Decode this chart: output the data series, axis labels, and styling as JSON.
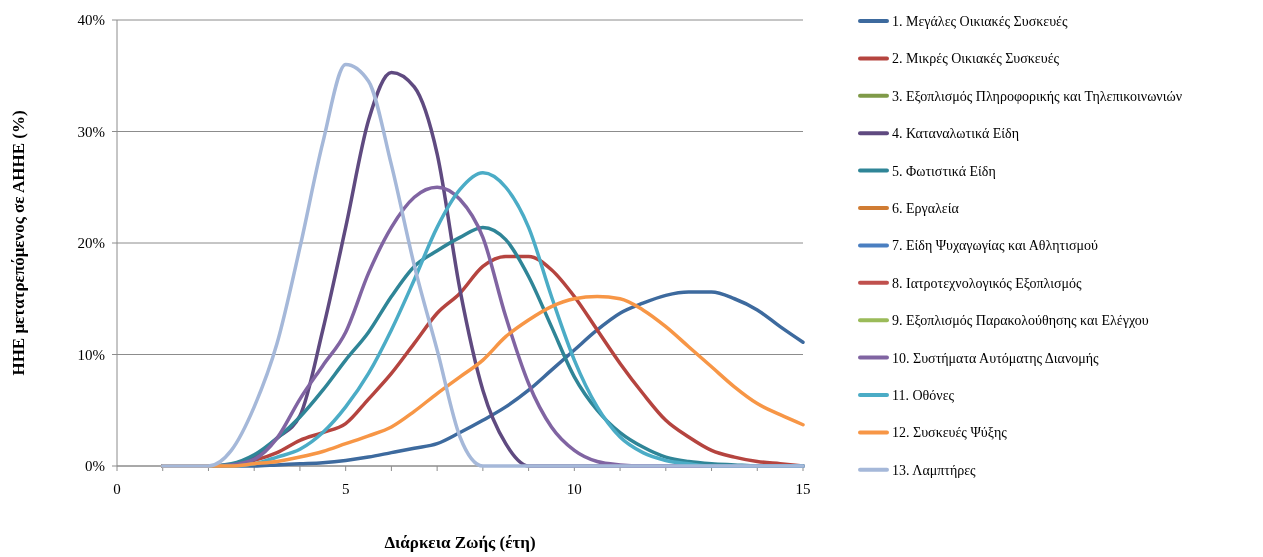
{
  "chart_data": {
    "type": "line",
    "xlabel": "Διάρκεια Ζωής (έτη)",
    "ylabel": "ΗΗΕ μετατρεπόμενος σε ΑΗΗΕ (%)",
    "x": [
      1,
      1.5,
      2,
      2.5,
      3,
      3.5,
      4,
      4.5,
      5,
      5.5,
      6,
      6.5,
      7,
      7.5,
      8,
      8.5,
      9,
      9.5,
      10,
      10.5,
      11,
      11.5,
      12,
      12.5,
      13,
      13.5,
      14,
      14.5,
      15
    ],
    "xlim": [
      0,
      15
    ],
    "xticks": [
      0,
      {
        "value": 1,
        "label": null
      },
      {
        "value": 2,
        "label": null
      },
      {
        "value": 3,
        "label": null
      },
      {
        "value": 4,
        "label": null
      },
      5,
      {
        "value": 6,
        "label": null
      },
      {
        "value": 7,
        "label": null
      },
      {
        "value": 8,
        "label": null
      },
      {
        "value": 9,
        "label": null
      },
      10,
      {
        "value": 11,
        "label": null
      },
      {
        "value": 12,
        "label": null
      },
      {
        "value": 13,
        "label": null
      },
      {
        "value": 14,
        "label": null
      },
      15
    ],
    "ylim": [
      0,
      40
    ],
    "yticks": [
      {
        "value": 0,
        "label": "0%"
      },
      {
        "value": 10,
        "label": "10%"
      },
      {
        "value": 20,
        "label": "20%"
      },
      {
        "value": 30,
        "label": "30%"
      },
      {
        "value": 40,
        "label": "40%"
      }
    ],
    "grid": "y",
    "legend": "right",
    "marker": "none",
    "line_style": "solid",
    "series": [
      {
        "name": "1. Μεγάλες Οικιακές Συσκευές",
        "color": "#3d6a9e",
        "values": [
          0,
          0,
          0,
          0,
          0,
          0.1,
          0.2,
          0.3,
          0.5,
          0.8,
          1.2,
          1.6,
          2,
          3,
          4.1,
          5.3,
          6.8,
          8.6,
          10.4,
          12.2,
          13.7,
          14.6,
          15.3,
          15.6,
          15.6,
          15,
          14,
          12.5,
          11.1
        ]
      },
      {
        "name": "2. Μικρές Οικιακές Συσκευές",
        "color": "#b5443f",
        "values": [
          0,
          0,
          0,
          0.1,
          0.5,
          1.2,
          2.3,
          3,
          3.8,
          6,
          8.3,
          11,
          13.7,
          15.5,
          17.9,
          18.8,
          18.8,
          17.6,
          15.2,
          12.2,
          9.2,
          6.5,
          4.1,
          2.6,
          1.4,
          0.8,
          0.4,
          0.2,
          0
        ]
      },
      {
        "name": "3. Εξοπλισμός Πληροφορικής και Τηλεπικοινωνιών",
        "color": "#7f9a48",
        "values": [
          null,
          null,
          null,
          null,
          null,
          null,
          null,
          null,
          null,
          null,
          null,
          null,
          null,
          null,
          null,
          null,
          null,
          null,
          null,
          null,
          null,
          null,
          null,
          null,
          null,
          null,
          null,
          null,
          null
        ]
      },
      {
        "name": "4. Καταναλωτικά Είδη",
        "color": "#5f4a80",
        "values": [
          0,
          0,
          0,
          0.1,
          0.8,
          2.5,
          4.5,
          12.2,
          21.4,
          31,
          35.3,
          34,
          28,
          15.8,
          6.8,
          2,
          0,
          0,
          0,
          0,
          0,
          0,
          0,
          0,
          0,
          0,
          0,
          0,
          0
        ]
      },
      {
        "name": "5. Φωτιστικά Είδη",
        "color": "#2f8597",
        "values": [
          0,
          0,
          0,
          0.2,
          1,
          2.5,
          4.4,
          6.8,
          9.5,
          12,
          15.2,
          17.9,
          19.3,
          20.5,
          21.4,
          20.3,
          17,
          12.5,
          8,
          5,
          3,
          1.7,
          0.8,
          0.4,
          0.2,
          0.1,
          0,
          0,
          0
        ]
      },
      {
        "name": "6. Εργαλεία",
        "color": "#d07c33",
        "values": [
          null,
          null,
          null,
          null,
          null,
          null,
          null,
          null,
          null,
          null,
          null,
          null,
          null,
          null,
          null,
          null,
          null,
          null,
          null,
          null,
          null,
          null,
          null,
          null,
          null,
          null,
          null,
          null,
          null
        ]
      },
      {
        "name": "7. Είδη Ψυχαγωγίας και Αθλητισμού",
        "color": "#4a7fc1",
        "values": [
          null,
          null,
          null,
          null,
          null,
          null,
          null,
          null,
          null,
          null,
          null,
          null,
          null,
          null,
          null,
          null,
          null,
          null,
          null,
          null,
          null,
          null,
          null,
          null,
          null,
          null,
          null,
          null,
          null
        ]
      },
      {
        "name": "8. Ιατροτεχνολογικός Εξοπλισμός",
        "color": "#c0504d",
        "values": [
          null,
          null,
          null,
          null,
          null,
          null,
          null,
          null,
          null,
          null,
          null,
          null,
          null,
          null,
          null,
          null,
          null,
          null,
          null,
          null,
          null,
          null,
          null,
          null,
          null,
          null,
          null,
          null,
          null
        ]
      },
      {
        "name": "9. Εξοπλισμός Παρακολούθησης και Ελέγχου",
        "color": "#9bbb59",
        "values": [
          null,
          null,
          null,
          null,
          null,
          null,
          null,
          null,
          null,
          null,
          null,
          null,
          null,
          null,
          null,
          null,
          null,
          null,
          null,
          null,
          null,
          null,
          null,
          null,
          null,
          null,
          null,
          null,
          null
        ]
      },
      {
        "name": "10. Συστήματα Αυτόματης Διανομής",
        "color": "#8064a2",
        "values": [
          0,
          0,
          0,
          0.1,
          0.6,
          2.5,
          6,
          9,
          12,
          17.3,
          21.4,
          24.1,
          25,
          23.9,
          20.5,
          13.4,
          7.4,
          3.5,
          1.4,
          0.4,
          0.1,
          0,
          0,
          0,
          0,
          0,
          0,
          0,
          0
        ]
      },
      {
        "name": "11. Οθόνες",
        "color": "#4bacc6",
        "values": [
          0,
          0,
          0,
          0,
          0.2,
          0.8,
          1.5,
          3,
          5.3,
          8.3,
          12.2,
          16.7,
          21.4,
          24.8,
          26.3,
          25,
          21.4,
          15.2,
          9.5,
          5.3,
          2.6,
          1.2,
          0.5,
          0.2,
          0,
          0,
          0,
          0,
          0
        ]
      },
      {
        "name": "12. Συσκευές Ψύξης",
        "color": "#f79646",
        "values": [
          0,
          0,
          0,
          0,
          0.2,
          0.4,
          0.8,
          1.3,
          2,
          2.7,
          3.5,
          4.9,
          6.5,
          8,
          9.5,
          11.6,
          13.1,
          14.3,
          15,
          15.2,
          15,
          14,
          12.5,
          10.7,
          8.9,
          7.1,
          5.6,
          4.6,
          3.7
        ]
      },
      {
        "name": "13. Λαμπτήρες",
        "color": "#a5b8d9",
        "values": [
          0,
          0,
          0,
          1.4,
          5.3,
          11,
          19.6,
          29,
          36,
          34.5,
          27,
          18,
          10.4,
          2.6,
          0,
          0,
          0,
          0,
          0,
          0,
          0,
          0,
          0,
          0,
          0,
          0,
          0,
          0,
          0
        ]
      }
    ]
  }
}
